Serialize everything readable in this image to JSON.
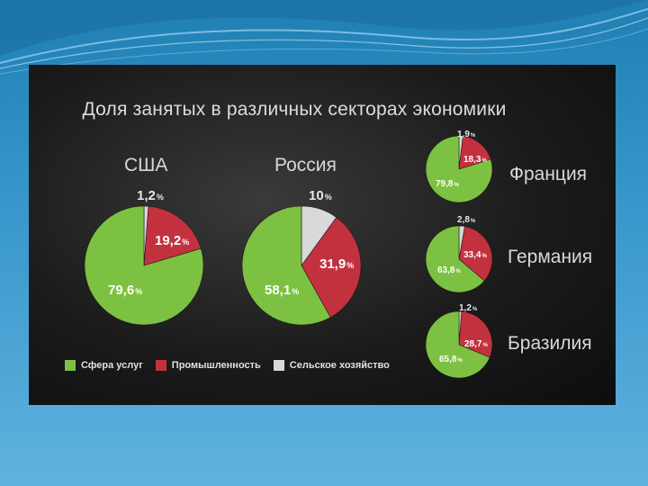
{
  "chart_data": {
    "type": "pie",
    "title": "Доля занятых в различных секторах экономики",
    "colors": {
      "services": "#7cc142",
      "industry": "#c3313f",
      "agriculture": "#d9d9d9"
    },
    "legend": {
      "placement": "bottom-left",
      "items": [
        {
          "key": "services",
          "label": "Сфера услуг"
        },
        {
          "key": "industry",
          "label": "Промышленность"
        },
        {
          "key": "agriculture",
          "label": "Сельское хозяйство"
        }
      ]
    },
    "pies": [
      {
        "country": "США",
        "services": 79.6,
        "industry": 19.2,
        "agriculture": 1.2,
        "labels": {
          "services": "79,6",
          "industry": "19,2",
          "agriculture": "1,2"
        }
      },
      {
        "country": "Россия",
        "services": 58.1,
        "industry": 31.9,
        "agriculture": 10,
        "labels": {
          "services": "58,1",
          "industry": "31,9",
          "agriculture": "10"
        }
      },
      {
        "country": "Франция",
        "services": 79.8,
        "industry": 18.3,
        "agriculture": 1.9,
        "labels": {
          "services": "79,8",
          "industry": "18,3",
          "agriculture": "1,9"
        }
      },
      {
        "country": "Германия",
        "services": 63.8,
        "industry": 33.4,
        "agriculture": 2.8,
        "labels": {
          "services": "63,8",
          "industry": "33,4",
          "agriculture": "2,8"
        }
      },
      {
        "country": "Бразилия",
        "services": 65.8,
        "industry": 28.7,
        "agriculture": 1.2,
        "labels": {
          "services": "65,8",
          "industry": "28,7",
          "agriculture": "1,2"
        }
      }
    ],
    "percent_sign": "%"
  }
}
